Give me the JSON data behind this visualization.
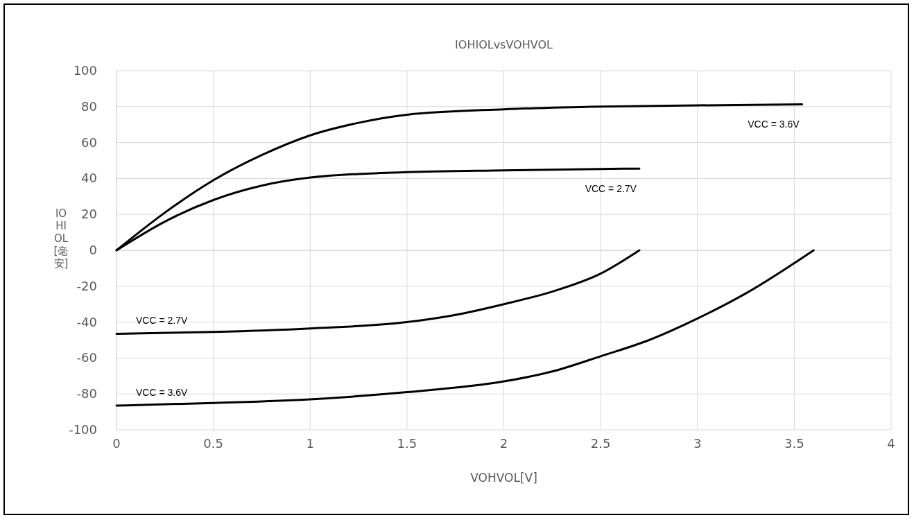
{
  "chart_data": {
    "type": "line",
    "title": "IOHIOLvsVOHVOL",
    "xlabel": "VOHVOL[V]",
    "ylabel": "IOHIOL[毫安]",
    "xlim": [
      0,
      4
    ],
    "xticks": [
      0,
      0.5,
      1,
      1.5,
      2,
      2.5,
      3,
      3.5,
      4
    ],
    "ylim": [
      -100,
      100
    ],
    "yticks": [
      -100,
      -80,
      -60,
      -40,
      -20,
      0,
      20,
      40,
      60,
      80,
      100
    ],
    "grid": true,
    "line_style": "solid",
    "marker": "none",
    "series": [
      {
        "name": "VCC = 3.6V",
        "color": "#000000",
        "x": [
          0,
          0.25,
          0.5,
          0.75,
          1,
          1.25,
          1.5,
          2,
          2.5,
          3,
          3.54
        ],
        "values": [
          0,
          21,
          39,
          53,
          64,
          71,
          75.5,
          78.5,
          80,
          80.7,
          81.3
        ]
      },
      {
        "name": "VCC = 2.7V",
        "color": "#000000",
        "x": [
          0,
          0.25,
          0.5,
          0.75,
          1,
          1.25,
          1.5,
          2,
          2.5,
          2.7
        ],
        "values": [
          0,
          16,
          28,
          36,
          40.5,
          42.5,
          43.5,
          44.5,
          45.3,
          45.5
        ]
      },
      {
        "name": "VCC = 2.7V",
        "color": "#000000",
        "x": [
          0,
          0.5,
          1,
          1.5,
          1.75,
          2,
          2.25,
          2.5,
          2.7
        ],
        "values": [
          -46.5,
          -45.5,
          -43.5,
          -40,
          -36,
          -30,
          -23,
          -13,
          0
        ]
      },
      {
        "name": "VCC = 3.6V",
        "color": "#000000",
        "x": [
          0,
          0.5,
          1,
          1.5,
          2,
          2.25,
          2.5,
          2.75,
          3,
          3.25,
          3.6
        ],
        "values": [
          -86.5,
          -85,
          -83,
          -79,
          -73,
          -67.5,
          -59,
          -50,
          -38,
          -24,
          0
        ]
      }
    ]
  }
}
